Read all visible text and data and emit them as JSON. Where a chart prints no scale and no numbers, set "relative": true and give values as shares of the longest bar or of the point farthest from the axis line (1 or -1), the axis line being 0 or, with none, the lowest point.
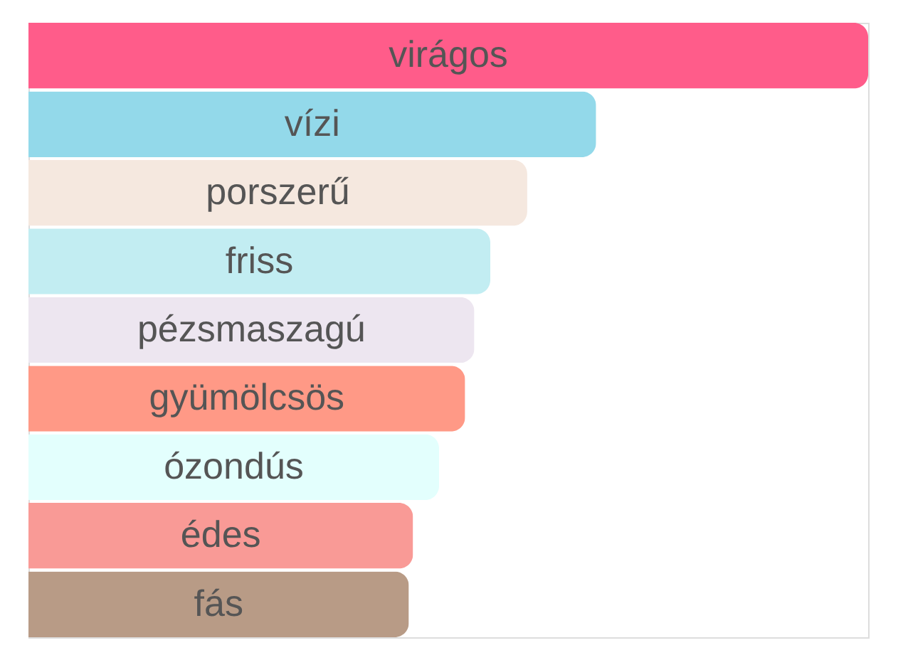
{
  "chart_data": {
    "type": "bar",
    "orientation": "horizontal",
    "relative": true,
    "categories": [
      "virágos",
      "vízi",
      "porszerű",
      "friss",
      "pézsmaszagú",
      "gyümölcsös",
      "ózondús",
      "édes",
      "fás"
    ],
    "values": [
      1,
      0.676,
      0.594,
      0.55,
      0.531,
      0.52,
      0.489,
      0.458,
      0.453
    ],
    "colors": [
      "#ff5c8a",
      "#93d9ea",
      "#f5e8df",
      "#c2edf2",
      "#ede6f0",
      "#ff9986",
      "#e3fffd",
      "#f99a96",
      "#b89b86"
    ]
  }
}
